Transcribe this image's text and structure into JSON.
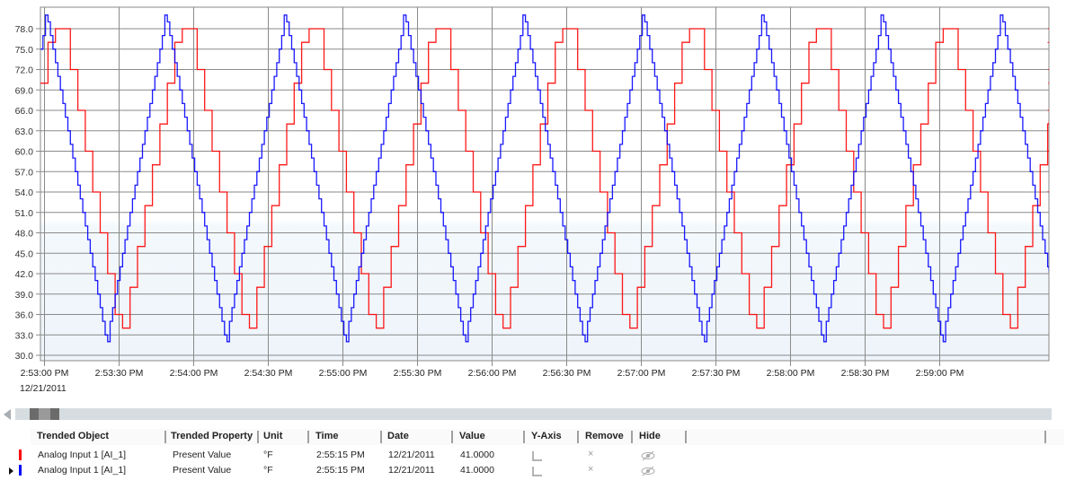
{
  "chart_data": {
    "type": "line",
    "title": "",
    "xlabel": "",
    "ylabel": "",
    "ylim": [
      29.2,
      81.2
    ],
    "y_ticks": [
      "30.0",
      "33.0",
      "36.0",
      "39.0",
      "42.0",
      "45.0",
      "48.0",
      "51.0",
      "54.0",
      "57.0",
      "60.0",
      "63.0",
      "66.0",
      "69.0",
      "72.0",
      "75.0",
      "78.0"
    ],
    "x_ticks": [
      "2:53:00 PM",
      "2:53:30 PM",
      "2:54:00 PM",
      "2:54:30 PM",
      "2:55:00 PM",
      "2:55:30 PM",
      "2:56:00 PM",
      "2:56:30 PM",
      "2:57:00 PM",
      "2:57:30 PM",
      "2:58:00 PM",
      "2:58:30 PM",
      "2:59:00 PM"
    ],
    "x_first_date": "12/21/2011",
    "x_range": [
      "2:53:00 PM",
      "2:59:45 PM"
    ],
    "grid": true,
    "step": true,
    "series": [
      {
        "name": "Analog Input 1 [AI_1]",
        "color": "#ff0000",
        "start_time": "2:53:00 PM",
        "interval_seconds": 3,
        "values": [
          70,
          76,
          78,
          78,
          72,
          66,
          60,
          54,
          48,
          42,
          36,
          34,
          40,
          46,
          52,
          58,
          64,
          70,
          76,
          78,
          78,
          72,
          66,
          60,
          54,
          48,
          42,
          36,
          34,
          40,
          46,
          52,
          58,
          64,
          70,
          76,
          78,
          78,
          72,
          66,
          60,
          54,
          48,
          42,
          36,
          34,
          40,
          46,
          52,
          58,
          64,
          70,
          76,
          78,
          78,
          72,
          66,
          60,
          54,
          48,
          42,
          36,
          34,
          40,
          46,
          52,
          58,
          64,
          70,
          76,
          78,
          78,
          72,
          66,
          60,
          54,
          48,
          42,
          36,
          34,
          40,
          46,
          52,
          58,
          64,
          70,
          76,
          78,
          78,
          72,
          66,
          60,
          54,
          48,
          42,
          36,
          34,
          40,
          46,
          52,
          58,
          64,
          70,
          76,
          78,
          78,
          72,
          66,
          60,
          54,
          48,
          42,
          36,
          34,
          40,
          46,
          52,
          58,
          64,
          70,
          76,
          78,
          78,
          72,
          66,
          60,
          54,
          48,
          42,
          36,
          34,
          40,
          46,
          52,
          58,
          64,
          70,
          76,
          78,
          78,
          72,
          66,
          60,
          54,
          48
        ]
      },
      {
        "name": "Analog Input 1 [AI_1]",
        "color": "#0000ff",
        "start_time": "2:53:00 PM",
        "interval_seconds": 1,
        "values": [
          75,
          77,
          80,
          79,
          77,
          75,
          73,
          71,
          69,
          67,
          65,
          63,
          61,
          59,
          57,
          55,
          53,
          51,
          49,
          47,
          45,
          43,
          41,
          39,
          37,
          35,
          33,
          32,
          35,
          37,
          39,
          41,
          43,
          45,
          47,
          49,
          51,
          53,
          55,
          57,
          59,
          61,
          63,
          65,
          67,
          69,
          71,
          73,
          75,
          77,
          80,
          79,
          77,
          75,
          73,
          71,
          69,
          67,
          65,
          63,
          61,
          59,
          57,
          55,
          53,
          51,
          49,
          47,
          45,
          43,
          41,
          39,
          37,
          35,
          33,
          32,
          35,
          37,
          39,
          41,
          43,
          45,
          47,
          49,
          51,
          53,
          55,
          57,
          59,
          61,
          63,
          65,
          67,
          69,
          71,
          73,
          75,
          77,
          80,
          79,
          77,
          75,
          73,
          71,
          69,
          67,
          65,
          63,
          61,
          59,
          57,
          55,
          53,
          51,
          49,
          47,
          45,
          43,
          41,
          39,
          37,
          35,
          33,
          32,
          35,
          37,
          39,
          41,
          43,
          45,
          47,
          49,
          51,
          53,
          55,
          57,
          59,
          61,
          63,
          65,
          67,
          69,
          71,
          73,
          75,
          77,
          80,
          79,
          77,
          75,
          73,
          71,
          69,
          67,
          65,
          63,
          61,
          59,
          57,
          55,
          53,
          51,
          49,
          47,
          45,
          43,
          41,
          39,
          37,
          35,
          33,
          32,
          35,
          37,
          39,
          41,
          43,
          45,
          47,
          49,
          51,
          53,
          55,
          57,
          59,
          61,
          63,
          65,
          67,
          69,
          71,
          73,
          75,
          77,
          80,
          79,
          77,
          75,
          73,
          71,
          69,
          67,
          65,
          63,
          61,
          59,
          57,
          55,
          53,
          51,
          49,
          47,
          45,
          43,
          41,
          39,
          37,
          35,
          33,
          32,
          35,
          37,
          39,
          41,
          43,
          45,
          47,
          49,
          51,
          53,
          55,
          57,
          59,
          61,
          63,
          65,
          67,
          69,
          71,
          73,
          75,
          77,
          80,
          79,
          77,
          75,
          73,
          71,
          69,
          67,
          65,
          63,
          61,
          59,
          57,
          55,
          53,
          51,
          49,
          47,
          45,
          43,
          41,
          39,
          37,
          35,
          33,
          32,
          35,
          37,
          39,
          41,
          43,
          45,
          47,
          49,
          51,
          53,
          55,
          57,
          59,
          61,
          63,
          65,
          67,
          69,
          71,
          73,
          75,
          77,
          80,
          79,
          77,
          75,
          73,
          71,
          69,
          67,
          65,
          63,
          61,
          59,
          57,
          55,
          53,
          51,
          49,
          47,
          45,
          43,
          41,
          39,
          37,
          35,
          33,
          32,
          35,
          37,
          39,
          41,
          43,
          45,
          47,
          49,
          51,
          53,
          55,
          57,
          59,
          61,
          63,
          65,
          67,
          69,
          71,
          73,
          75,
          77,
          80,
          79,
          77,
          75,
          73,
          71,
          69,
          67,
          65,
          63,
          61,
          59,
          57,
          55,
          53,
          51,
          49,
          47,
          45,
          43,
          41,
          39,
          37,
          35,
          33,
          32,
          35,
          37,
          39,
          41,
          43,
          45,
          47,
          49,
          51,
          53,
          55,
          57,
          59,
          61,
          63,
          65,
          67,
          69,
          71,
          73,
          75,
          77,
          80,
          79,
          77,
          75,
          73,
          71,
          69,
          67,
          65,
          63,
          61,
          59,
          57,
          55,
          53,
          51,
          49,
          47,
          45,
          43,
          41
        ]
      }
    ]
  },
  "table": {
    "headers": [
      "Trended Object",
      "Trended Property",
      "Unit",
      "Time",
      "Date",
      "Value",
      "Y-Axis",
      "Remove",
      "Hide"
    ],
    "rows": [
      {
        "color": "#ff0000",
        "object": "Analog Input 1 [AI_1]",
        "property": "Present Value",
        "unit": "°F",
        "time": "2:55:15 PM",
        "date": "12/21/2011",
        "value": "41.0000",
        "selected": false
      },
      {
        "color": "#0000ff",
        "object": "Analog Input 1 [AI_1]",
        "property": "Present Value",
        "unit": "°F",
        "time": "2:55:15 PM",
        "date": "12/21/2011",
        "value": "41.0000",
        "selected": true
      }
    ],
    "icons": {
      "y_axis": "y-axis-icon",
      "remove": "close-icon",
      "hide": "eye-slash-icon"
    }
  },
  "scrollbar": {
    "position_fraction": 0.015
  }
}
